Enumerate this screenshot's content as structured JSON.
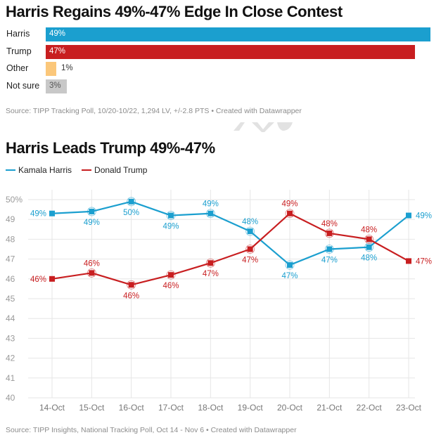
{
  "colors": {
    "harris": "#1b9fcf",
    "trump": "#c81e20",
    "other": "#fbc77a",
    "not_sure": "#c8c8c8",
    "grid": "#e6e6e6",
    "axis_text": "#9a9a9a"
  },
  "bar_chart": {
    "title": "Harris Regains 49%-47% Edge In Close Contest",
    "rows": [
      {
        "label": "Harris",
        "value": 49,
        "display": "49%",
        "color_key": "harris",
        "label_inside": true
      },
      {
        "label": "Trump",
        "value": 47,
        "display": "47%",
        "color_key": "trump",
        "label_inside": true
      },
      {
        "label": "Other",
        "value": 1,
        "display": "1%",
        "color_key": "other",
        "label_inside": false
      },
      {
        "label": "Not sure",
        "value": 3,
        "display": "3%",
        "color_key": "not_sure",
        "label_inside": true
      }
    ],
    "source": "Source: TIPP Tracking Poll, 10/20-10/22, 1,294 LV, +/-2.8 PTS • Created with Datawrapper"
  },
  "line_chart": {
    "title": "Harris Leads Trump 49%-47%",
    "legend": [
      {
        "name": "Kamala Harris",
        "color_key": "harris"
      },
      {
        "name": "Donald Trump",
        "color_key": "trump"
      }
    ],
    "source": "Source: TIPP Insights, National Tracking Poll, Oct 14 - Nov 6 • Created with Datawrapper"
  },
  "chart_data": [
    {
      "type": "bar",
      "orientation": "horizontal",
      "title": "Harris Regains 49%-47% Edge In Close Contest",
      "categories": [
        "Harris",
        "Trump",
        "Other",
        "Not sure"
      ],
      "values": [
        49,
        47,
        1,
        3
      ],
      "unit": "%"
    },
    {
      "type": "line",
      "title": "Harris Leads Trump 49%-47%",
      "x": [
        "14-Oct",
        "15-Oct",
        "16-Oct",
        "17-Oct",
        "18-Oct",
        "19-Oct",
        "20-Oct",
        "21-Oct",
        "22-Oct",
        "23-Oct"
      ],
      "ylim": [
        40,
        50
      ],
      "yticks": [
        "50%",
        "49",
        "48",
        "47",
        "46",
        "45",
        "44",
        "43",
        "42",
        "41",
        "40"
      ],
      "ytick_values": [
        50,
        49,
        48,
        47,
        46,
        45,
        44,
        43,
        42,
        41,
        40
      ],
      "grid": true,
      "legend_position": "top-left",
      "series": [
        {
          "name": "Kamala Harris",
          "color_key": "harris",
          "values": [
            49.3,
            49.4,
            49.9,
            49.2,
            49.3,
            48.4,
            46.7,
            47.5,
            47.6,
            49.2
          ],
          "labels": [
            "49%",
            "49%",
            "50%",
            "49%",
            "49%",
            "48%",
            "47%",
            "47%",
            "48%",
            "49%"
          ],
          "label_pos": [
            "left",
            "below",
            "below",
            "below",
            "above",
            "above",
            "below",
            "below",
            "below",
            "right"
          ]
        },
        {
          "name": "Donald Trump",
          "color_key": "trump",
          "values": [
            46.0,
            46.3,
            45.7,
            46.2,
            46.8,
            47.5,
            49.3,
            48.3,
            48.0,
            46.9
          ],
          "labels": [
            "46%",
            "46%",
            "46%",
            "46%",
            "47%",
            "47%",
            "49%",
            "48%",
            "48%",
            "47%"
          ],
          "label_pos": [
            "left",
            "above",
            "below",
            "below",
            "below",
            "below",
            "above",
            "above",
            "above",
            "right"
          ]
        }
      ]
    }
  ]
}
